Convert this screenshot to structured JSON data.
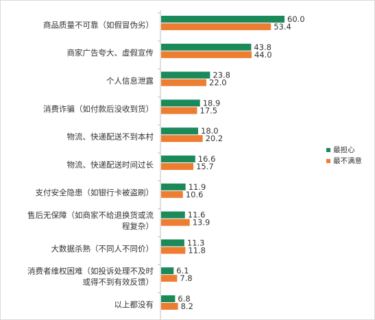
{
  "chart_data": {
    "type": "bar",
    "orientation": "horizontal",
    "title": "",
    "xlabel": "",
    "ylabel": "",
    "xlim": [
      0,
      70
    ],
    "grid": false,
    "legend_position": "right",
    "categories": [
      [
        "商品质量不可靠（如假冒伪劣）"
      ],
      [
        "商家广告夸大、虚假宣传"
      ],
      [
        "个人信息泄露"
      ],
      [
        "消费诈骗（如付款后没收到货）"
      ],
      [
        "物流、快递配送不到本村"
      ],
      [
        "物流、快递配送时间过长"
      ],
      [
        "支付安全隐患（如银行卡被盗刷）"
      ],
      [
        "售后无保障（如商家不给退换货或流",
        "程复杂）"
      ],
      [
        "大数据杀熟（不同人不同价）"
      ],
      [
        "消费者维权困难（如投诉处理不及时",
        "或得不到有效反馈）"
      ],
      [
        "以上都没有"
      ]
    ],
    "series": [
      {
        "name": "最担心",
        "color": "#1a8a5a",
        "values": [
          60.0,
          43.8,
          23.8,
          18.9,
          18.0,
          16.6,
          11.9,
          11.6,
          11.3,
          6.1,
          6.8
        ]
      },
      {
        "name": "最不满意",
        "color": "#ed7d31",
        "values": [
          53.4,
          44.0,
          22.0,
          17.5,
          20.2,
          15.7,
          10.6,
          13.9,
          11.8,
          7.8,
          8.2
        ]
      }
    ]
  }
}
